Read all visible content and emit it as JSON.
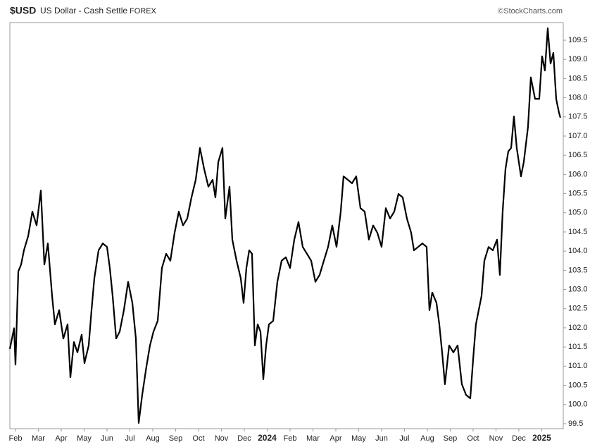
{
  "chart_data": {
    "type": "line",
    "title": "$USD",
    "subtitle": "US Dollar - Cash Settle",
    "exchange": "FOREX",
    "source": "©StockCharts.com",
    "color": "#000000",
    "x": [
      0.754,
      0.938,
      1.0,
      1.123,
      1.246,
      1.369,
      1.554,
      1.738,
      1.923,
      2.108,
      2.262,
      2.415,
      2.6,
      2.723,
      2.908,
      3.092,
      3.277,
      3.4,
      3.554,
      3.708,
      3.892,
      4.015,
      4.2,
      4.323,
      4.446,
      4.631,
      4.815,
      5.0,
      5.123,
      5.246,
      5.4,
      5.554,
      5.738,
      5.923,
      6.108,
      6.262,
      6.385,
      6.538,
      6.723,
      6.877,
      7.031,
      7.215,
      7.4,
      7.585,
      7.769,
      7.954,
      8.138,
      8.323,
      8.508,
      8.692,
      8.877,
      9.062,
      9.246,
      9.431,
      9.615,
      9.738,
      9.862,
      10.046,
      10.169,
      10.354,
      10.477,
      10.662,
      10.846,
      10.969,
      11.092,
      11.215,
      11.338,
      11.462,
      11.585,
      11.708,
      11.831,
      11.954,
      12.077,
      12.262,
      12.446,
      12.631,
      12.815,
      13.0,
      13.185,
      13.369,
      13.554,
      13.738,
      13.923,
      14.108,
      14.292,
      14.477,
      14.662,
      14.846,
      15.031,
      15.215,
      15.338,
      15.523,
      15.708,
      15.892,
      16.077,
      16.262,
      16.446,
      16.631,
      16.815,
      17.0,
      17.185,
      17.369,
      17.554,
      17.738,
      17.923,
      18.108,
      18.292,
      18.415,
      18.6,
      18.785,
      18.969,
      19.092,
      19.215,
      19.4,
      19.523,
      19.646,
      19.769,
      19.954,
      20.138,
      20.323,
      20.508,
      20.692,
      20.877,
      21.0,
      21.123,
      21.246,
      21.369,
      21.492,
      21.677,
      21.862,
      22.046,
      22.169,
      22.292,
      22.415,
      22.538,
      22.662,
      22.785,
      22.908,
      23.092,
      23.215,
      23.4,
      23.523,
      23.708,
      23.892,
      24.015,
      24.138,
      24.262,
      24.385,
      24.508,
      24.631,
      24.754,
      24.815
    ],
    "values": [
      101.45,
      101.99,
      101.04,
      103.47,
      103.65,
      104.02,
      104.39,
      105.03,
      104.67,
      105.58,
      103.65,
      104.2,
      102.83,
      102.09,
      102.46,
      101.72,
      102.09,
      100.71,
      101.63,
      101.36,
      101.82,
      101.08,
      101.54,
      102.46,
      103.29,
      104.02,
      104.2,
      104.11,
      103.56,
      102.83,
      101.72,
      101.9,
      102.46,
      103.2,
      102.65,
      101.72,
      99.52,
      100.25,
      100.99,
      101.54,
      101.9,
      102.18,
      103.56,
      103.93,
      103.75,
      104.48,
      105.03,
      104.67,
      104.85,
      105.4,
      105.86,
      106.69,
      106.14,
      105.68,
      105.86,
      105.4,
      106.32,
      106.69,
      104.85,
      105.68,
      104.3,
      103.75,
      103.29,
      102.65,
      103.56,
      104.02,
      103.93,
      101.54,
      102.09,
      101.9,
      100.66,
      101.54,
      102.09,
      102.18,
      103.2,
      103.75,
      103.84,
      103.56,
      104.3,
      104.76,
      104.11,
      103.93,
      103.75,
      103.2,
      103.38,
      103.75,
      104.11,
      104.67,
      104.11,
      105.03,
      105.95,
      105.86,
      105.77,
      105.95,
      105.12,
      105.03,
      104.3,
      104.67,
      104.48,
      104.11,
      105.12,
      104.85,
      105.03,
      105.49,
      105.4,
      104.85,
      104.48,
      104.02,
      104.11,
      104.2,
      104.11,
      102.46,
      102.92,
      102.65,
      102.09,
      101.36,
      100.53,
      101.54,
      101.36,
      101.54,
      100.53,
      100.25,
      100.16,
      101.17,
      102.09,
      102.46,
      102.83,
      103.75,
      104.11,
      104.02,
      104.3,
      103.38,
      105.03,
      106.14,
      106.6,
      106.69,
      107.51,
      106.69,
      105.95,
      106.32,
      107.24,
      108.53,
      107.97,
      107.97,
      109.08,
      108.71,
      109.81,
      108.89,
      109.17,
      107.97,
      107.61,
      107.48
    ],
    "xlim": [
      0.754,
      24.94
    ],
    "xticks": [
      {
        "value": 1,
        "label": "Feb"
      },
      {
        "value": 2,
        "label": "Mar"
      },
      {
        "value": 3,
        "label": "Apr"
      },
      {
        "value": 4,
        "label": "May"
      },
      {
        "value": 5,
        "label": "Jun"
      },
      {
        "value": 6,
        "label": "Jul"
      },
      {
        "value": 7,
        "label": "Aug"
      },
      {
        "value": 8,
        "label": "Sep"
      },
      {
        "value": 9,
        "label": "Oct"
      },
      {
        "value": 10,
        "label": "Nov"
      },
      {
        "value": 11,
        "label": "Dec"
      },
      {
        "value": 12,
        "label": "2024"
      },
      {
        "value": 13,
        "label": "Feb"
      },
      {
        "value": 14,
        "label": "Mar"
      },
      {
        "value": 15,
        "label": "Apr"
      },
      {
        "value": 16,
        "label": "May"
      },
      {
        "value": 17,
        "label": "Jun"
      },
      {
        "value": 18,
        "label": "Jul"
      },
      {
        "value": 19,
        "label": "Aug"
      },
      {
        "value": 20,
        "label": "Sep"
      },
      {
        "value": 21,
        "label": "Oct"
      },
      {
        "value": 22,
        "label": "Nov"
      },
      {
        "value": 23,
        "label": "Dec"
      },
      {
        "value": 24,
        "label": "2025"
      }
    ],
    "ylim": [
      99.37,
      109.96
    ],
    "yticks": [
      99.5,
      {
        "value": 100,
        "label": "100.0"
      },
      100.5,
      {
        "value": 101,
        "label": "101.0"
      },
      101.5,
      {
        "value": 102,
        "label": "102.0"
      },
      102.5,
      {
        "value": 103,
        "label": "103.0"
      },
      103.5,
      {
        "value": 104,
        "label": "104.0"
      },
      104.5,
      {
        "value": 105,
        "label": "105.0"
      },
      105.5,
      {
        "value": 106,
        "label": "106.0"
      },
      106.5,
      {
        "value": 107,
        "label": "107.0"
      },
      107.5,
      {
        "value": 108,
        "label": "108.0"
      },
      108.5,
      {
        "value": 109,
        "label": "109.0"
      },
      109.5
    ],
    "grid": false
  }
}
